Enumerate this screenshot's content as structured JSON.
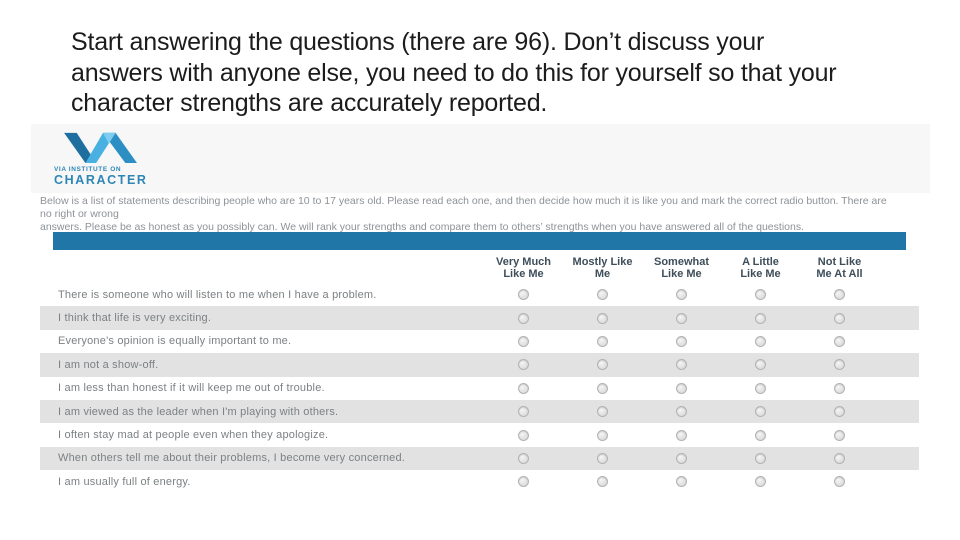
{
  "slide": {
    "heading_lines": [
      "Start answering the questions (there are 96). Don’t discuss your",
      "answers with anyone else, you need to do this for yourself so that your",
      "character strengths are accurately reported."
    ]
  },
  "site": {
    "logo": {
      "brand_line1": "VIA INSTITUTE ON",
      "brand_line2": "CHARACTER"
    },
    "instruction_lines": [
      "Below is a list of statements describing people who are 10 to 17 years old. Please read each one, and then decide how much it is like you and mark the correct radio button.  There are no right or wrong",
      "answers. Please be as honest as you possibly can. We will rank your strengths and compare them to others’ strengths when you have answered all of the questions."
    ],
    "columns": [
      {
        "line1": "Very Much",
        "line2": "Like Me"
      },
      {
        "line1": "Mostly Like",
        "line2": "Me"
      },
      {
        "line1": "Somewhat",
        "line2": "Like Me"
      },
      {
        "line1": "A Little",
        "line2": "Like Me"
      },
      {
        "line1": "Not Like",
        "line2": "Me At All"
      }
    ],
    "statements": [
      "There is someone who will listen to me when I have a problem.",
      "I think that life is very exciting.",
      "Everyone's opinion is equally important to me.",
      "I am not a show-off.",
      "I am less than honest if it will keep me out of trouble.",
      "I am viewed as the leader when I'm playing with others.",
      "I often stay mad at people even when they apologize.",
      "When others tell me about their problems, I become very concerned.",
      "I am usually full of energy."
    ],
    "colors": {
      "accent_blue": "#2076a7",
      "row_gray": "#e2e2e2",
      "header_band": "#f7f7f8",
      "label_color": "#3e4e5a",
      "statement_color": "#7c8184",
      "instructions_color": "#8d9297",
      "logo_blue": "#2e86b5",
      "heading_color": "#1c1c1c"
    }
  }
}
